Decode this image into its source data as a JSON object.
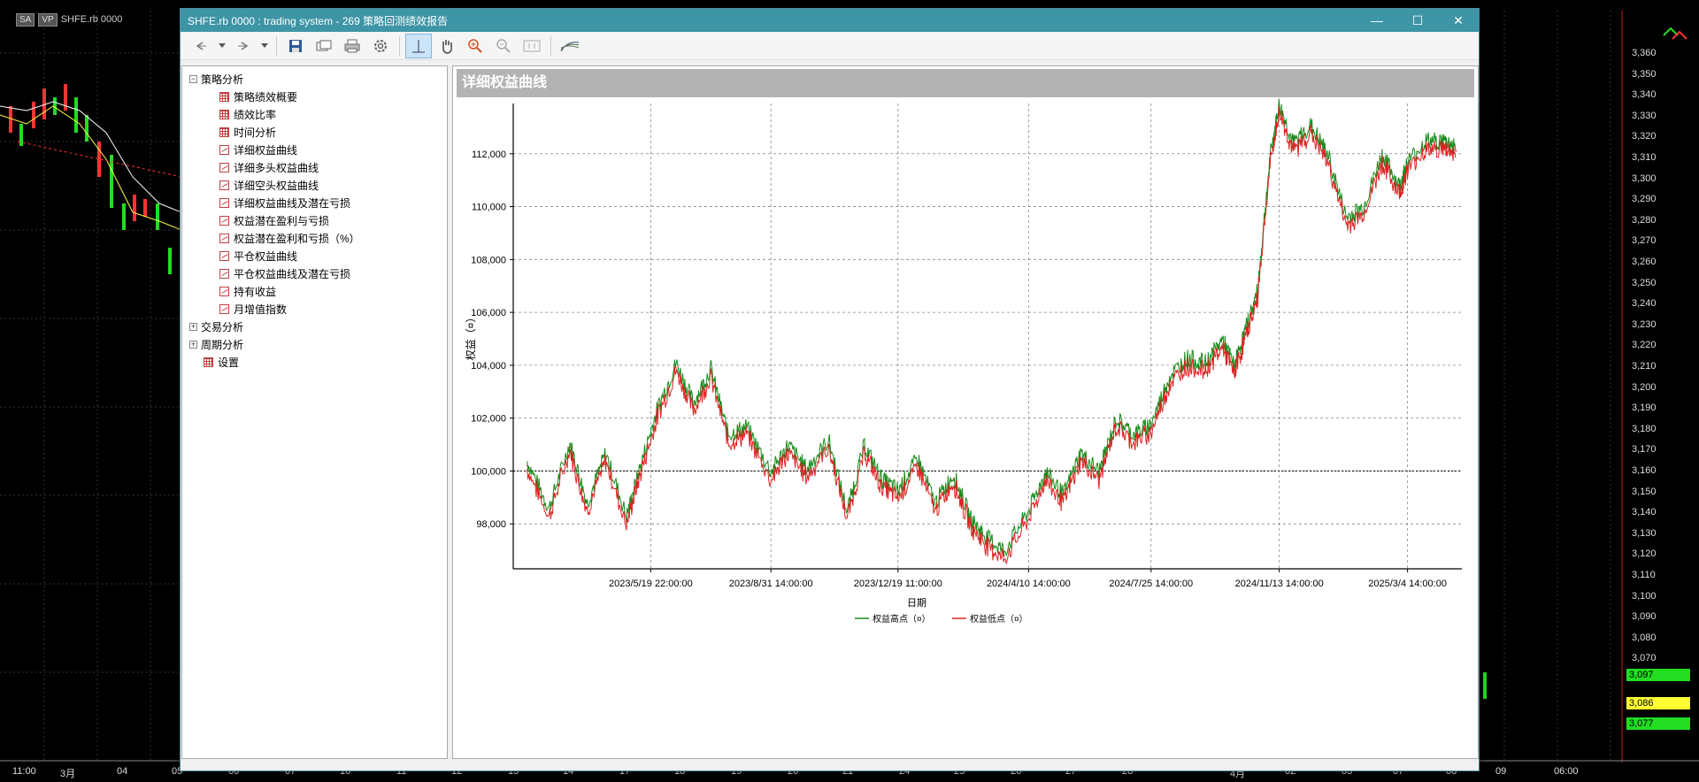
{
  "background": {
    "symbol_chip": "SA",
    "vp_chip": "VP",
    "symbol_label": "SHFE.rb 0000",
    "price_axis": [
      "3,360",
      "3,350",
      "3,340",
      "3,330",
      "3,320",
      "3,310",
      "3,300",
      "3,290",
      "3,280",
      "3,270",
      "3,260",
      "3,250",
      "3,240",
      "3,230",
      "3,220",
      "3,210",
      "3,200",
      "3,190",
      "3,180",
      "3,170",
      "3,160",
      "3,150",
      "3,140",
      "3,130",
      "3,120",
      "3,110",
      "3,100",
      "3,090",
      "3,080",
      "3,070"
    ],
    "price_badges": [
      {
        "text": "3,097",
        "color": "#22dd22"
      },
      {
        "text": "3,086",
        "color": "#ffff33"
      },
      {
        "text": "3,077",
        "color": "#22dd22"
      }
    ],
    "time_axis": [
      "11:00",
      "3月",
      "04",
      "05",
      "06",
      "07",
      "10",
      "11",
      "12",
      "13",
      "14",
      "17",
      "18",
      "19",
      "20",
      "21",
      "24",
      "25",
      "26",
      "27",
      "28",
      "4月",
      "02",
      "03",
      "07",
      "08",
      "09",
      "06:00"
    ]
  },
  "window": {
    "title": "SHFE.rb 0000 : trading system - 269 策略回测绩效报告",
    "minimize": "—",
    "maximize": "☐",
    "close": "✕"
  },
  "toolbar": {
    "icons": [
      "back-icon",
      "dropdown-icon",
      "forward-icon",
      "dropdown-icon",
      "save-icon",
      "open-icon",
      "print-icon",
      "settings-icon",
      "crosshair-icon",
      "hand-icon",
      "zoom-in-icon",
      "zoom-out-icon",
      "zoom-reset-icon",
      "chart-style-icon"
    ]
  },
  "tree": {
    "root": "策略分析",
    "children": [
      "策略绩效概要",
      "绩效比率",
      "时间分析",
      "详细权益曲线",
      "详细多头权益曲线",
      "详细空头权益曲线",
      "详细权益曲线及潜在亏损",
      "权益潜在盈利与亏损",
      "权益潜在盈利和亏损（%）",
      "平仓权益曲线",
      "平仓权益曲线及潜在亏损",
      "持有收益",
      "月增值指数"
    ],
    "child_icons": [
      "grid",
      "grid",
      "grid",
      "line",
      "line",
      "line",
      "line",
      "line",
      "line",
      "line",
      "line",
      "line",
      "line"
    ],
    "siblings": [
      "交易分析",
      "周期分析"
    ],
    "settings": "设置"
  },
  "chart_data": {
    "type": "line",
    "title": "详细权益曲线",
    "xlabel": "日期",
    "ylabel": "权益（¤）",
    "x_tick_labels": [
      "2023/5/19 22:00:00",
      "2023/8/31 14:00:00",
      "2023/12/19 11:00:00",
      "2024/4/10 14:00:00",
      "2024/7/25 14:00:00",
      "2024/11/13 14:00:00",
      "2025/3/4 14:00:00"
    ],
    "y_tick_labels": [
      "98,000",
      "100,000",
      "102,000",
      "104,000",
      "106,000",
      "108,000",
      "110,000",
      "112,000"
    ],
    "y_ticks": [
      98000,
      100000,
      102000,
      104000,
      106000,
      108000,
      110000,
      112000
    ],
    "ylim": [
      96300,
      113900
    ],
    "baseline": 100000,
    "grid": true,
    "legend_position": "bottom",
    "series": [
      {
        "name": "权益高点（¤）",
        "color": "#1a8a1a"
      },
      {
        "name": "权益低点（¤）",
        "color": "#dd2222"
      }
    ],
    "x": [
      "2023-02-01",
      "2023-02-20",
      "2023-03-10",
      "2023-03-25",
      "2023-04-10",
      "2023-04-28",
      "2023-05-10",
      "2023-05-25",
      "2023-06-10",
      "2023-06-25",
      "2023-07-10",
      "2023-07-25",
      "2023-08-10",
      "2023-08-31",
      "2023-09-15",
      "2023-10-01",
      "2023-10-20",
      "2023-11-05",
      "2023-11-20",
      "2023-12-05",
      "2023-12-19",
      "2024-01-05",
      "2024-01-20",
      "2024-02-05",
      "2024-02-20",
      "2024-03-05",
      "2024-03-20",
      "2024-04-10",
      "2024-04-25",
      "2024-05-10",
      "2024-05-25",
      "2024-06-10",
      "2024-06-25",
      "2024-07-10",
      "2024-07-25",
      "2024-08-10",
      "2024-08-25",
      "2024-09-10",
      "2024-09-25",
      "2024-10-05",
      "2024-10-15",
      "2024-10-25",
      "2024-11-05",
      "2024-11-13",
      "2024-11-25",
      "2024-12-10",
      "2024-12-25",
      "2025-01-10",
      "2025-01-25",
      "2025-02-10",
      "2025-02-25",
      "2025-03-04",
      "2025-03-20",
      "2025-04-05",
      "2025-04-15"
    ],
    "values": [
      100200,
      98400,
      100900,
      98600,
      100500,
      98100,
      100000,
      102200,
      103900,
      102400,
      103700,
      101200,
      101500,
      99800,
      100800,
      99900,
      101000,
      98300,
      100800,
      99500,
      99100,
      100300,
      98600,
      99700,
      98000,
      97300,
      96800,
      98300,
      99800,
      98900,
      100500,
      99800,
      101800,
      101200,
      101600,
      103400,
      104100,
      103900,
      104800,
      103800,
      105200,
      106600,
      111700,
      113700,
      112200,
      112900,
      111800,
      109400,
      109800,
      111800,
      110600,
      111500,
      112300,
      112300,
      112100
    ]
  }
}
